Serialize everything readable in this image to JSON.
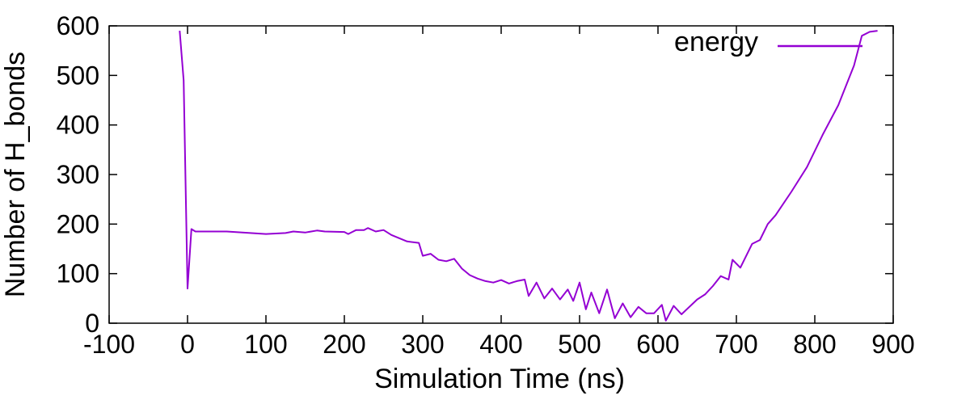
{
  "chart_data": {
    "type": "line",
    "title": "",
    "xlabel": "Simulation Time (ns)",
    "ylabel": "Number of H_bonds",
    "xlim": [
      -100,
      900
    ],
    "ylim": [
      0,
      600
    ],
    "xticks": [
      -100,
      0,
      100,
      200,
      300,
      400,
      500,
      600,
      700,
      800,
      900
    ],
    "yticks": [
      0,
      100,
      200,
      300,
      400,
      500,
      600
    ],
    "grid": false,
    "legend_position": "top-right",
    "series": [
      {
        "name": "energy",
        "color": "#9400d3",
        "points": [
          [
            -10,
            590
          ],
          [
            -5,
            490
          ],
          [
            0,
            70
          ],
          [
            5,
            190
          ],
          [
            10,
            185
          ],
          [
            20,
            185
          ],
          [
            50,
            185
          ],
          [
            100,
            180
          ],
          [
            125,
            182
          ],
          [
            135,
            185
          ],
          [
            150,
            183
          ],
          [
            165,
            187
          ],
          [
            175,
            185
          ],
          [
            200,
            184
          ],
          [
            205,
            180
          ],
          [
            210,
            184
          ],
          [
            215,
            188
          ],
          [
            225,
            188
          ],
          [
            230,
            192
          ],
          [
            240,
            185
          ],
          [
            250,
            188
          ],
          [
            260,
            178
          ],
          [
            280,
            165
          ],
          [
            295,
            162
          ],
          [
            300,
            136
          ],
          [
            310,
            140
          ],
          [
            320,
            128
          ],
          [
            330,
            125
          ],
          [
            340,
            130
          ],
          [
            350,
            110
          ],
          [
            360,
            97
          ],
          [
            370,
            90
          ],
          [
            380,
            85
          ],
          [
            390,
            82
          ],
          [
            400,
            87
          ],
          [
            410,
            80
          ],
          [
            420,
            85
          ],
          [
            430,
            88
          ],
          [
            435,
            55
          ],
          [
            445,
            82
          ],
          [
            455,
            50
          ],
          [
            465,
            70
          ],
          [
            475,
            48
          ],
          [
            485,
            68
          ],
          [
            492,
            45
          ],
          [
            500,
            82
          ],
          [
            508,
            28
          ],
          [
            515,
            62
          ],
          [
            525,
            20
          ],
          [
            535,
            68
          ],
          [
            545,
            10
          ],
          [
            555,
            40
          ],
          [
            565,
            12
          ],
          [
            575,
            33
          ],
          [
            585,
            20
          ],
          [
            595,
            20
          ],
          [
            605,
            37
          ],
          [
            610,
            5
          ],
          [
            620,
            35
          ],
          [
            630,
            18
          ],
          [
            650,
            48
          ],
          [
            660,
            58
          ],
          [
            670,
            75
          ],
          [
            680,
            95
          ],
          [
            690,
            88
          ],
          [
            695,
            128
          ],
          [
            705,
            112
          ],
          [
            720,
            160
          ],
          [
            730,
            168
          ],
          [
            740,
            200
          ],
          [
            750,
            218
          ],
          [
            770,
            265
          ],
          [
            790,
            315
          ],
          [
            810,
            380
          ],
          [
            830,
            440
          ],
          [
            850,
            520
          ],
          [
            860,
            580
          ],
          [
            870,
            588
          ],
          [
            880,
            590
          ]
        ]
      }
    ]
  }
}
